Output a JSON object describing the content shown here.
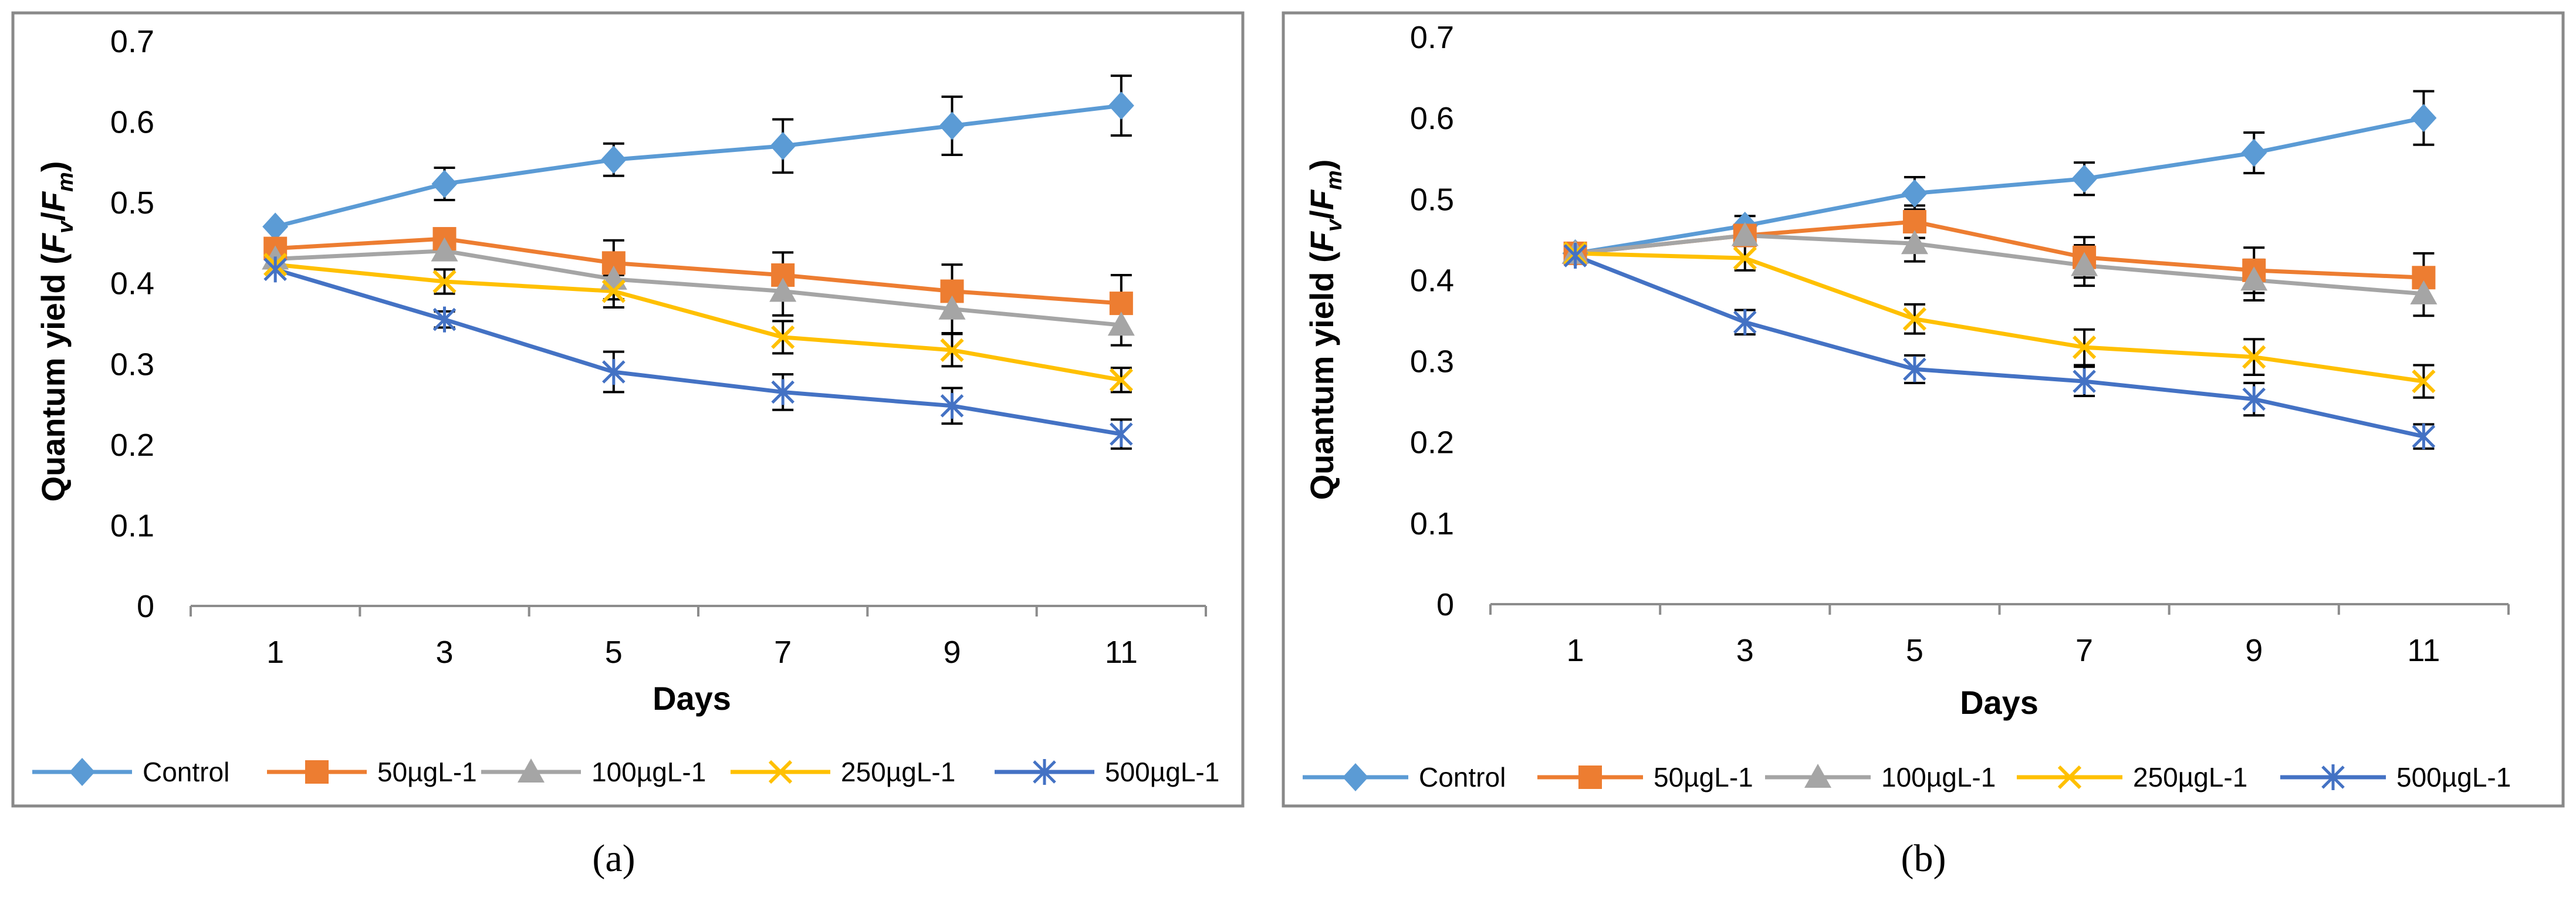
{
  "figure": {
    "colors": {
      "frame": "#898989",
      "axis": "#8c8c8c",
      "text": "#000000",
      "errorbar": "#000000"
    },
    "series_style": [
      {
        "name": "Control",
        "color": "#5b9bd5",
        "marker": "diamond"
      },
      {
        "name": "50µgL-1",
        "color": "#ed7d31",
        "marker": "square"
      },
      {
        "name": "100µgL-1",
        "color": "#a5a5a5",
        "marker": "triangle"
      },
      {
        "name": "250µgL-1",
        "color": "#ffc000",
        "marker": "x"
      },
      {
        "name": "500µgL-1",
        "color": "#4472c4",
        "marker": "star"
      }
    ]
  },
  "chart_data": [
    {
      "type": "line",
      "caption": "(a)",
      "title": "",
      "xlabel": "Days",
      "ylabel_main": "Quantum yield (",
      "ylabel_fv": "F",
      "ylabel_v": "v",
      "ylabel_slash": "/",
      "ylabel_fm": "F",
      "ylabel_m": "m",
      "ylabel_close": ")",
      "categories": [
        "1",
        "3",
        "5",
        "7",
        "9",
        "11"
      ],
      "ylim": [
        0,
        0.7
      ],
      "yticks": [
        "0",
        "0.1",
        "0.2",
        "0.3",
        "0.4",
        "0.5",
        "0.6",
        "0.7"
      ],
      "legend": "bottom",
      "series": [
        {
          "name": "Control",
          "values": [
            0.47,
            0.523,
            0.553,
            0.57,
            0.595,
            0.62
          ],
          "errors": [
            0.0,
            0.02,
            0.02,
            0.033,
            0.036,
            0.037
          ]
        },
        {
          "name": "50µgL-1",
          "values": [
            0.443,
            0.455,
            0.425,
            0.41,
            0.39,
            0.375
          ],
          "errors": [
            0.0,
            0.0,
            0.028,
            0.028,
            0.033,
            0.035
          ]
        },
        {
          "name": "100µgL-1",
          "values": [
            0.43,
            0.44,
            0.405,
            0.39,
            0.368,
            0.348
          ],
          "errors": [
            0.0,
            0.0,
            0.025,
            0.03,
            0.03,
            0.025
          ]
        },
        {
          "name": "250µgL-1",
          "values": [
            0.423,
            0.402,
            0.39,
            0.333,
            0.317,
            0.28
          ],
          "errors": [
            0.0,
            0.015,
            0.02,
            0.02,
            0.02,
            0.015
          ]
        },
        {
          "name": "500µgL-1",
          "values": [
            0.417,
            0.355,
            0.29,
            0.265,
            0.248,
            0.213
          ],
          "errors": [
            0.0,
            0.01,
            0.025,
            0.022,
            0.022,
            0.018
          ]
        }
      ]
    },
    {
      "type": "line",
      "caption": "(b)",
      "title": "",
      "xlabel": "Days",
      "ylabel_main": "Quantum yield (",
      "ylabel_fv": "F",
      "ylabel_v": "v",
      "ylabel_slash": "/",
      "ylabel_fm": "F",
      "ylabel_m": "m",
      "ylabel_close": ")",
      "categories": [
        "1",
        "3",
        "5",
        "7",
        "9",
        "11"
      ],
      "ylim": [
        0,
        0.7
      ],
      "yticks": [
        "0",
        "0.1",
        "0.2",
        "0.3",
        "0.4",
        "0.5",
        "0.6",
        "0.7"
      ],
      "legend": "bottom",
      "series": [
        {
          "name": "Control",
          "values": [
            0.433,
            0.467,
            0.507,
            0.525,
            0.557,
            0.6
          ],
          "errors": [
            0.0,
            0.012,
            0.02,
            0.02,
            0.025,
            0.033
          ]
        },
        {
          "name": "50µgL-1",
          "values": [
            0.433,
            0.455,
            0.472,
            0.428,
            0.412,
            0.403
          ],
          "errors": [
            0.0,
            0.0,
            0.02,
            0.025,
            0.028,
            0.03
          ]
        },
        {
          "name": "100µgL-1",
          "values": [
            0.433,
            0.455,
            0.445,
            0.418,
            0.4,
            0.383
          ],
          "errors": [
            0.0,
            0.0,
            0.022,
            0.025,
            0.025,
            0.027
          ]
        },
        {
          "name": "250µgL-1",
          "values": [
            0.433,
            0.427,
            0.352,
            0.317,
            0.305,
            0.275
          ],
          "errors": [
            0.0,
            0.015,
            0.018,
            0.022,
            0.022,
            0.02
          ]
        },
        {
          "name": "500µgL-1",
          "values": [
            0.43,
            0.348,
            0.29,
            0.275,
            0.253,
            0.207
          ],
          "errors": [
            0.0,
            0.015,
            0.017,
            0.018,
            0.02,
            0.015
          ]
        }
      ]
    }
  ]
}
